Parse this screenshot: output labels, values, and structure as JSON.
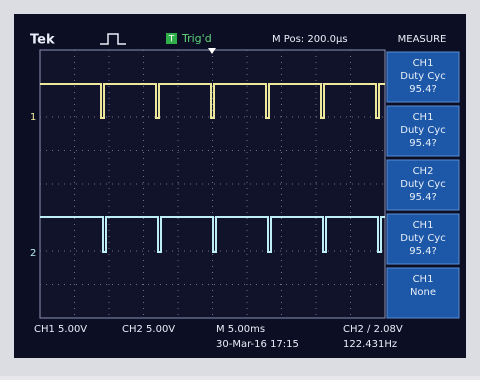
{
  "header": {
    "brand": "Tek",
    "trigger_icon": "T",
    "trigger_status": "Trig'd",
    "position": "M Pos: 200.0µs"
  },
  "menu": {
    "title": "MEASURE",
    "items": [
      {
        "source": "CH1",
        "measurement": "Duty Cyc",
        "value": "95.4?"
      },
      {
        "source": "CH1",
        "measurement": "Duty Cyc",
        "value": "95.4?"
      },
      {
        "source": "CH2",
        "measurement": "Duty Cyc",
        "value": "95.4?"
      },
      {
        "source": "CH1",
        "measurement": "Duty Cyc",
        "value": "95.4?"
      },
      {
        "source": "CH1",
        "measurement": "None"
      }
    ]
  },
  "channel_markers": [
    "1",
    "2"
  ],
  "footer": {
    "ch1_scale": "CH1 5.00V",
    "ch2_scale": "CH2 5.00V",
    "timebase": "M 5.00ms",
    "date": "30-Mar-16 17:15",
    "trigger": "CH2 ∕ 2.08V",
    "frequency": "122.431Hz"
  }
}
